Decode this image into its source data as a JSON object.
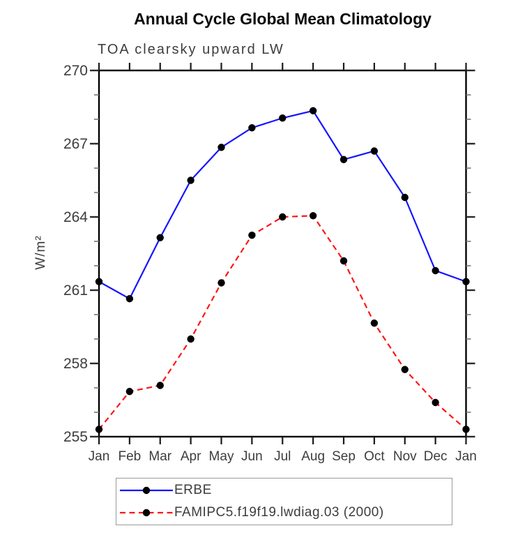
{
  "chart_data": {
    "type": "line",
    "title": "Annual Cycle Global Mean Climatology",
    "subtitle": "TOA clearsky upward LW",
    "ylabel": "W/m²",
    "xlabel": "",
    "categories": [
      "Jan",
      "Feb",
      "Mar",
      "Apr",
      "May",
      "Jun",
      "Jul",
      "Aug",
      "Sep",
      "Oct",
      "Nov",
      "Dec",
      "Jan"
    ],
    "ylim": [
      255,
      270
    ],
    "ytick_major": [
      255,
      258,
      261,
      264,
      267,
      270
    ],
    "ytick_minor_step": 1,
    "grid": false,
    "frame": "box-with-outward-ticks",
    "legend_position": "bottom-left-box",
    "marker": {
      "shape": "circle",
      "color": "#000000"
    },
    "series": [
      {
        "name": "ERBE",
        "color": "#1515ff",
        "line_style": "solid",
        "values": [
          261.35,
          260.65,
          263.15,
          265.5,
          266.85,
          267.65,
          268.05,
          268.35,
          266.35,
          266.7,
          264.8,
          261.8,
          261.35
        ]
      },
      {
        "name": "FAMIPC5.f19f19.lwdiag.03 (2000)",
        "color": "#fc1717",
        "line_style": "dashed",
        "values": [
          255.3,
          256.85,
          257.1,
          259.0,
          261.3,
          263.25,
          264.0,
          264.05,
          262.2,
          259.65,
          257.75,
          256.4,
          255.3
        ]
      }
    ]
  }
}
